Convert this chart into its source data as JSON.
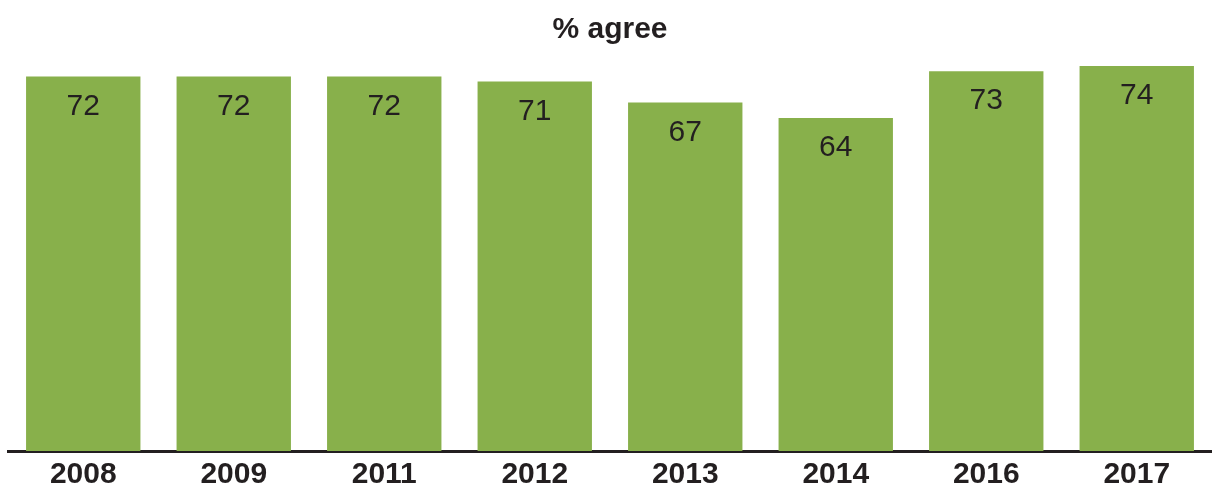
{
  "chart_data": {
    "type": "bar",
    "title": "% agree",
    "categories": [
      "2008",
      "2009",
      "2011",
      "2012",
      "2013",
      "2014",
      "2016",
      "2017"
    ],
    "values": [
      72,
      72,
      72,
      71,
      67,
      64,
      73,
      74
    ],
    "color": "#88b04b",
    "ylim": [
      0,
      74
    ],
    "tick_labels": "x",
    "grid": false,
    "legend": false,
    "data_labels": true
  }
}
